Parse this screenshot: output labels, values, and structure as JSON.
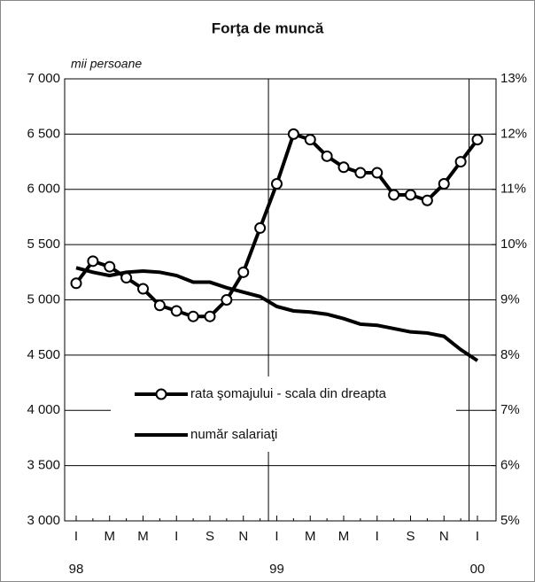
{
  "chart_data": {
    "type": "line",
    "title": "Forţa de muncă",
    "y_axis_label": "mii persoane",
    "categories": [
      "I",
      null,
      "M",
      null,
      "M",
      null,
      "I",
      null,
      "S",
      null,
      "N",
      null,
      "I",
      null,
      "M",
      null,
      "M",
      null,
      "I",
      null,
      "S",
      null,
      "N",
      null,
      "I"
    ],
    "year_labels": [
      "98",
      null,
      null,
      null,
      null,
      null,
      null,
      null,
      null,
      null,
      null,
      null,
      "99",
      null,
      null,
      null,
      null,
      null,
      null,
      null,
      null,
      null,
      null,
      null,
      "00"
    ],
    "series": [
      {
        "name": "rata şomajului - scala din dreapta",
        "color": "#000000",
        "axis": "y2",
        "marker": "circle",
        "values": [
          9.3,
          9.7,
          9.6,
          9.4,
          9.2,
          8.9,
          8.8,
          8.7,
          8.7,
          9.0,
          9.5,
          10.3,
          11.1,
          12.0,
          11.9,
          11.6,
          11.4,
          11.3,
          11.3,
          10.9,
          10.9,
          10.8,
          11.1,
          11.5,
          11.9
        ]
      },
      {
        "name": "număr salariaţi",
        "color": "#000000",
        "values": [
          5290,
          5250,
          5220,
          5250,
          5260,
          5250,
          5220,
          5160,
          5160,
          5110,
          5070,
          5030,
          4940,
          4900,
          4890,
          4870,
          4830,
          4780,
          4770,
          4740,
          4710,
          4700,
          4670,
          4550,
          4450
        ]
      }
    ],
    "ylim": [
      3000,
      7000
    ],
    "yticks": [
      {
        "value": 3000,
        "label": "3 000"
      },
      {
        "value": 3500,
        "label": "3 500"
      },
      {
        "value": 4000,
        "label": "4 000"
      },
      {
        "value": 4500,
        "label": "4 500"
      },
      {
        "value": 5000,
        "label": "5 000"
      },
      {
        "value": 5500,
        "label": "5 500"
      },
      {
        "value": 6000,
        "label": "6 000"
      },
      {
        "value": 6500,
        "label": "6 500"
      },
      {
        "value": 7000,
        "label": "7 000"
      }
    ],
    "y2lim": [
      5,
      13
    ],
    "y2ticks": [
      {
        "value": 5,
        "label": "5%"
      },
      {
        "value": 6,
        "label": "6%"
      },
      {
        "value": 7,
        "label": "7%"
      },
      {
        "value": 8,
        "label": "8%"
      },
      {
        "value": 9,
        "label": "9%"
      },
      {
        "value": 10,
        "label": "10%"
      },
      {
        "value": 11,
        "label": "11%"
      },
      {
        "value": 12,
        "label": "12%"
      },
      {
        "value": 13,
        "label": "13%"
      }
    ],
    "grid": true
  }
}
